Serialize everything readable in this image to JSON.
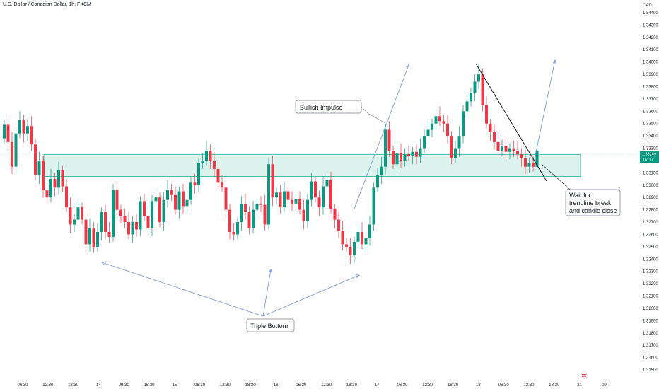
{
  "symbol": "U.S. Dollar / Canadian Dollar, 1h, FXCM",
  "currency": "CAD",
  "colors": {
    "up": "#089981",
    "down": "#f23645",
    "zone_fill": "#cfeee7",
    "zone_stroke": "#22ab94",
    "arrow": "#6d8fd6",
    "trendline": "#131722",
    "price_label": "#089981"
  },
  "chart_data": {
    "type": "candlestick",
    "ylim": [
      1.315,
      1.345
    ],
    "yticks": [
      "1.34400",
      "1.34300",
      "1.34200",
      "1.34100",
      "1.34000",
      "1.33900",
      "1.33800",
      "1.33700",
      "1.33600",
      "1.33500",
      "1.33400",
      "1.33300",
      "1.33200",
      "1.33100",
      "1.33000",
      "1.32900",
      "1.32800",
      "1.32700",
      "1.32600",
      "1.32500",
      "1.32400",
      "1.32300",
      "1.32200",
      "1.32100",
      "1.32000",
      "1.31900",
      "1.31800",
      "1.31700",
      "1.31600",
      "1.31500"
    ],
    "xticks": [
      "06:30",
      "12:30",
      "18:30",
      "14",
      "09:30",
      "15:30",
      "15",
      "06:30",
      "12:30",
      "18:30",
      "16",
      "06:30",
      "12:30",
      "18:30",
      "17",
      "06:30",
      "12:30",
      "18:30",
      "18",
      "06:30",
      "12:30",
      "18:30",
      "21",
      "09:"
    ],
    "current_price": "1.33249",
    "countdown": "07:17",
    "closes": [
      1.3349,
      1.3335,
      1.3315,
      1.3342,
      1.3353,
      1.3342,
      1.3348,
      1.3333,
      1.3308,
      1.332,
      1.3296,
      1.329,
      1.3305,
      1.3298,
      1.3312,
      1.3299,
      1.3282,
      1.3268,
      1.3272,
      1.3282,
      1.3272,
      1.3252,
      1.3265,
      1.325,
      1.3262,
      1.3278,
      1.3262,
      1.3258,
      1.3296,
      1.328,
      1.3275,
      1.327,
      1.326,
      1.327,
      1.3264,
      1.3287,
      1.3275,
      1.3265,
      1.3287,
      1.329,
      1.327,
      1.3288,
      1.3296,
      1.3292,
      1.328,
      1.3295,
      1.3283,
      1.3288,
      1.3302,
      1.33,
      1.3318,
      1.332,
      1.3328,
      1.332,
      1.3313,
      1.3302,
      1.3298,
      1.328,
      1.3262,
      1.326,
      1.327,
      1.3285,
      1.3278,
      1.3265,
      1.328,
      1.3285,
      1.3284,
      1.3268,
      1.3317,
      1.329,
      1.3294,
      1.3282,
      1.3295,
      1.3288,
      1.3285,
      1.3289,
      1.328,
      1.3271,
      1.3288,
      1.3303,
      1.329,
      1.3282,
      1.3299,
      1.3304,
      1.3281,
      1.3272,
      1.3263,
      1.3252,
      1.325,
      1.3243,
      1.3254,
      1.3262,
      1.3252,
      1.3257,
      1.3268,
      1.3298,
      1.3308,
      1.3315,
      1.3345,
      1.3328,
      1.3317,
      1.3326,
      1.332,
      1.3325,
      1.3324,
      1.3327,
      1.3323,
      1.333,
      1.334,
      1.3345,
      1.335,
      1.3356,
      1.3352,
      1.335,
      1.334,
      1.3322,
      1.333,
      1.334,
      1.336,
      1.3368,
      1.3375,
      1.3384,
      1.339,
      1.3365,
      1.335,
      1.3343,
      1.3335,
      1.3328,
      1.3332,
      1.3327,
      1.333,
      1.3328,
      1.3325,
      1.3322,
      1.3315,
      1.3318,
      1.3315,
      1.3328
    ],
    "zone": [
      1.3307,
      1.3325
    ],
    "annotations": {
      "bullish_impulse": "Bullish Impulse",
      "triple_bottom": "Triple Bottom",
      "wait_line1": "Wait for",
      "wait_line2": "trendline break",
      "wait_line3": "and candle close"
    }
  }
}
